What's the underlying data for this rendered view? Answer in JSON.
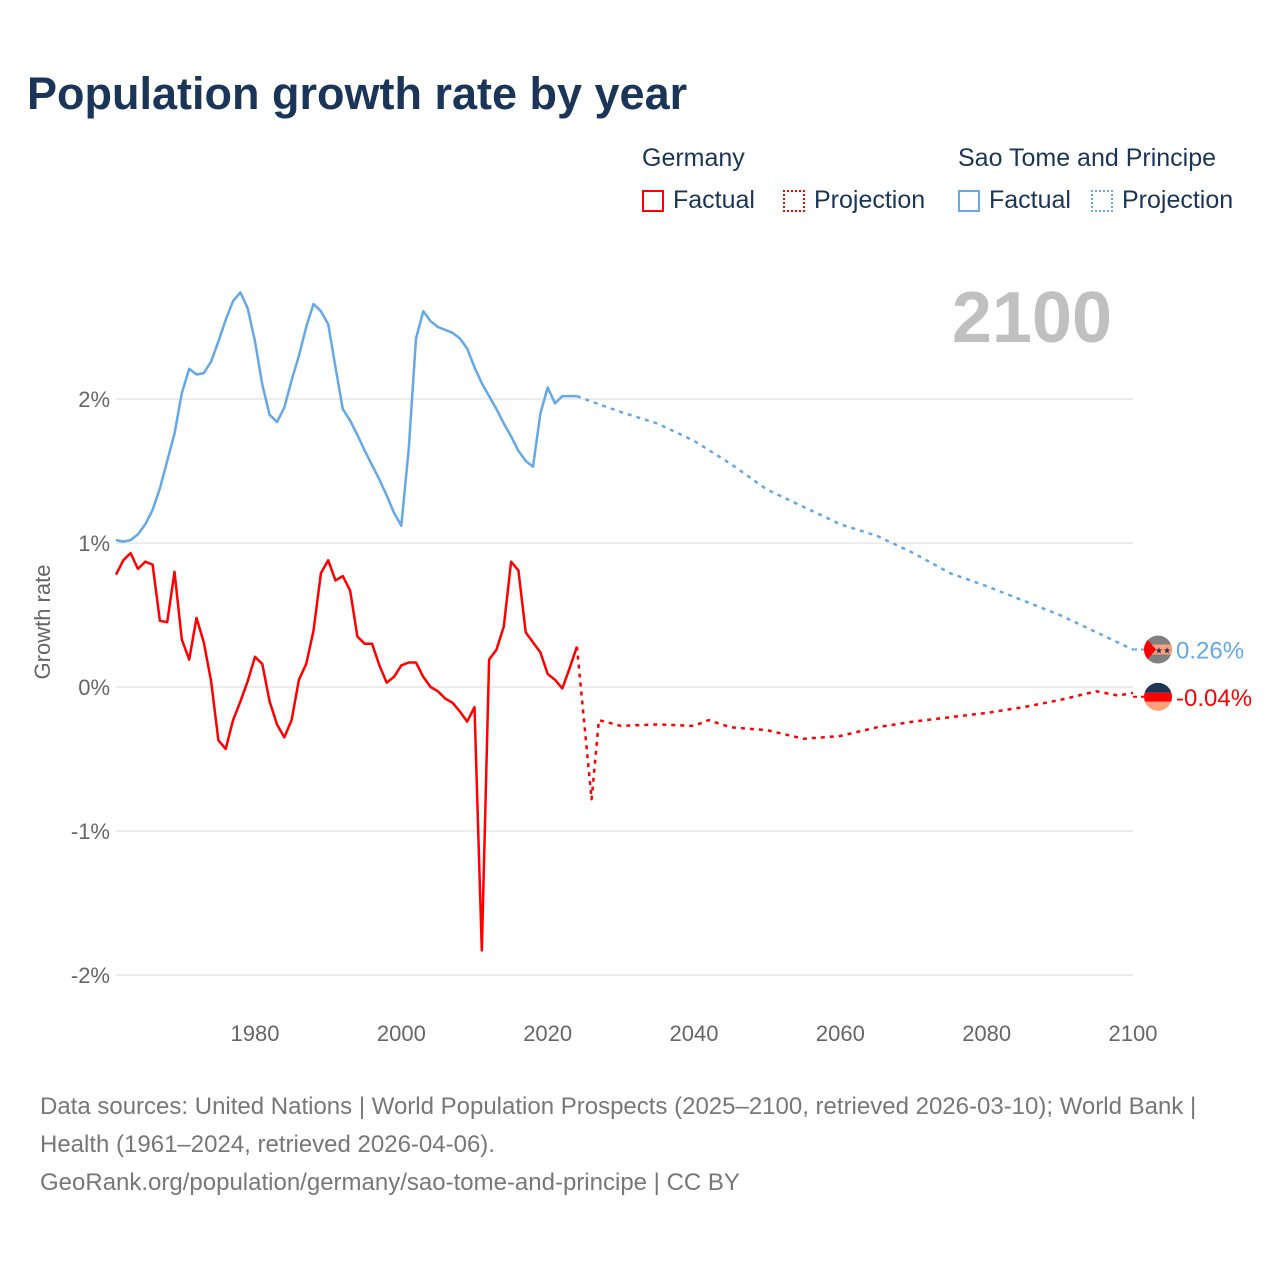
{
  "title": "Population growth rate by year",
  "legend": {
    "groups": [
      {
        "name": "Germany",
        "color": "#ff0000",
        "factual": "Factual",
        "projection": "Projection"
      },
      {
        "name": "Sao Tome and Principe",
        "color": "#64a8e8",
        "factual": "Factual",
        "projection": "Projection"
      }
    ]
  },
  "year_overlay": "2100",
  "footer": {
    "line1": "Data sources: United Nations | World Population Prospects (2025–2100, retrieved 2026-03-10); World Bank | Health (1961–2024, retrieved 2026-04-06).",
    "line2": "GeoRank.org/population/germany/sao-tome-and-principe | CC BY"
  },
  "chart_data": {
    "type": "line",
    "title": "Population growth rate by year",
    "xlabel": "",
    "ylabel": "Growth rate",
    "xlim": [
      1961,
      2100
    ],
    "ylim": [
      -2.1,
      2.9
    ],
    "x_ticks": [
      1980,
      2000,
      2020,
      2040,
      2060,
      2080,
      2100
    ],
    "y_ticks": [
      {
        "v": 2,
        "label": "2%"
      },
      {
        "v": 1,
        "label": "1%"
      },
      {
        "v": 0,
        "label": "0%"
      },
      {
        "v": -1,
        "label": "-1%"
      },
      {
        "v": -2,
        "label": "-2%"
      }
    ],
    "grid": "horizontal",
    "legend_position": "top-right",
    "series": [
      {
        "name": "Sao Tome and Principe",
        "kind": "factual",
        "color": "#64a8e8",
        "end_label": "0.26%",
        "x": [
          1961,
          1962,
          1963,
          1964,
          1965,
          1966,
          1967,
          1968,
          1969,
          1970,
          1971,
          1972,
          1973,
          1974,
          1975,
          1976,
          1977,
          1978,
          1979,
          1980,
          1981,
          1982,
          1983,
          1984,
          1985,
          1986,
          1987,
          1988,
          1989,
          1990,
          1991,
          1992,
          1993,
          1994,
          1995,
          1996,
          1997,
          1998,
          1999,
          2000,
          2001,
          2002,
          2003,
          2004,
          2005,
          2006,
          2007,
          2008,
          2009,
          2010,
          2011,
          2012,
          2013,
          2014,
          2015,
          2016,
          2017,
          2018,
          2019,
          2020,
          2021,
          2022,
          2023,
          2024
        ],
        "y": [
          1.02,
          1.01,
          1.02,
          1.06,
          1.13,
          1.23,
          1.38,
          1.57,
          1.76,
          2.04,
          2.21,
          2.17,
          2.18,
          2.26,
          2.4,
          2.55,
          2.68,
          2.74,
          2.63,
          2.4,
          2.1,
          1.89,
          1.84,
          1.94,
          2.13,
          2.3,
          2.5,
          2.66,
          2.61,
          2.52,
          2.22,
          1.93,
          1.85,
          1.75,
          1.64,
          1.54,
          1.44,
          1.33,
          1.21,
          1.12,
          1.65,
          2.42,
          2.61,
          2.54,
          2.5,
          2.48,
          2.46,
          2.42,
          2.35,
          2.22,
          2.11,
          2.02,
          1.93,
          1.83,
          1.74,
          1.64,
          1.57,
          1.53,
          1.9,
          2.08,
          1.97,
          2.02,
          2.02,
          2.02
        ]
      },
      {
        "name": "Sao Tome and Principe",
        "kind": "projection",
        "color": "#64a8e8",
        "x": [
          2024,
          2025,
          2030,
          2035,
          2040,
          2045,
          2050,
          2055,
          2060,
          2065,
          2070,
          2075,
          2080,
          2085,
          2090,
          2095,
          2100
        ],
        "y": [
          2.02,
          2.0,
          1.91,
          1.83,
          1.71,
          1.55,
          1.37,
          1.25,
          1.13,
          1.05,
          0.93,
          0.79,
          0.7,
          0.6,
          0.5,
          0.38,
          0.26
        ]
      },
      {
        "name": "Germany",
        "kind": "factual",
        "color": "#ff0000",
        "end_label": "-0.04%",
        "x": [
          1961,
          1962,
          1963,
          1964,
          1965,
          1966,
          1967,
          1968,
          1969,
          1970,
          1971,
          1972,
          1973,
          1974,
          1975,
          1976,
          1977,
          1978,
          1979,
          1980,
          1981,
          1982,
          1983,
          1984,
          1985,
          1986,
          1987,
          1988,
          1989,
          1990,
          1991,
          1992,
          1993,
          1994,
          1995,
          1996,
          1997,
          1998,
          1999,
          2000,
          2001,
          2002,
          2003,
          2004,
          2005,
          2006,
          2007,
          2008,
          2009,
          2010,
          2011,
          2012,
          2013,
          2014,
          2015,
          2016,
          2017,
          2018,
          2019,
          2020,
          2021,
          2022,
          2023,
          2024
        ],
        "y": [
          0.78,
          0.88,
          0.93,
          0.82,
          0.87,
          0.85,
          0.46,
          0.45,
          0.8,
          0.33,
          0.19,
          0.48,
          0.31,
          0.04,
          -0.37,
          -0.43,
          -0.23,
          -0.1,
          0.04,
          0.21,
          0.16,
          -0.1,
          -0.26,
          -0.35,
          -0.23,
          0.05,
          0.16,
          0.39,
          0.79,
          0.88,
          0.74,
          0.77,
          0.67,
          0.35,
          0.3,
          0.3,
          0.15,
          0.03,
          0.07,
          0.15,
          0.17,
          0.17,
          0.07,
          0.0,
          -0.03,
          -0.08,
          -0.11,
          -0.17,
          -0.24,
          -0.14,
          -1.83,
          0.19,
          0.26,
          0.42,
          0.87,
          0.81,
          0.38,
          0.31,
          0.24,
          0.09,
          0.05,
          -0.01,
          0.13,
          0.28
        ]
      },
      {
        "name": "Germany",
        "kind": "projection",
        "color": "#ff0000",
        "x": [
          2024,
          2026,
          2027,
          2030,
          2035,
          2040,
          2042,
          2045,
          2050,
          2055,
          2060,
          2065,
          2070,
          2075,
          2080,
          2085,
          2090,
          2095,
          2098,
          2100
        ],
        "y": [
          0.28,
          -0.78,
          -0.23,
          -0.27,
          -0.26,
          -0.27,
          -0.23,
          -0.28,
          -0.3,
          -0.36,
          -0.34,
          -0.28,
          -0.24,
          -0.21,
          -0.18,
          -0.14,
          -0.09,
          -0.03,
          -0.06,
          -0.04
        ]
      }
    ]
  }
}
